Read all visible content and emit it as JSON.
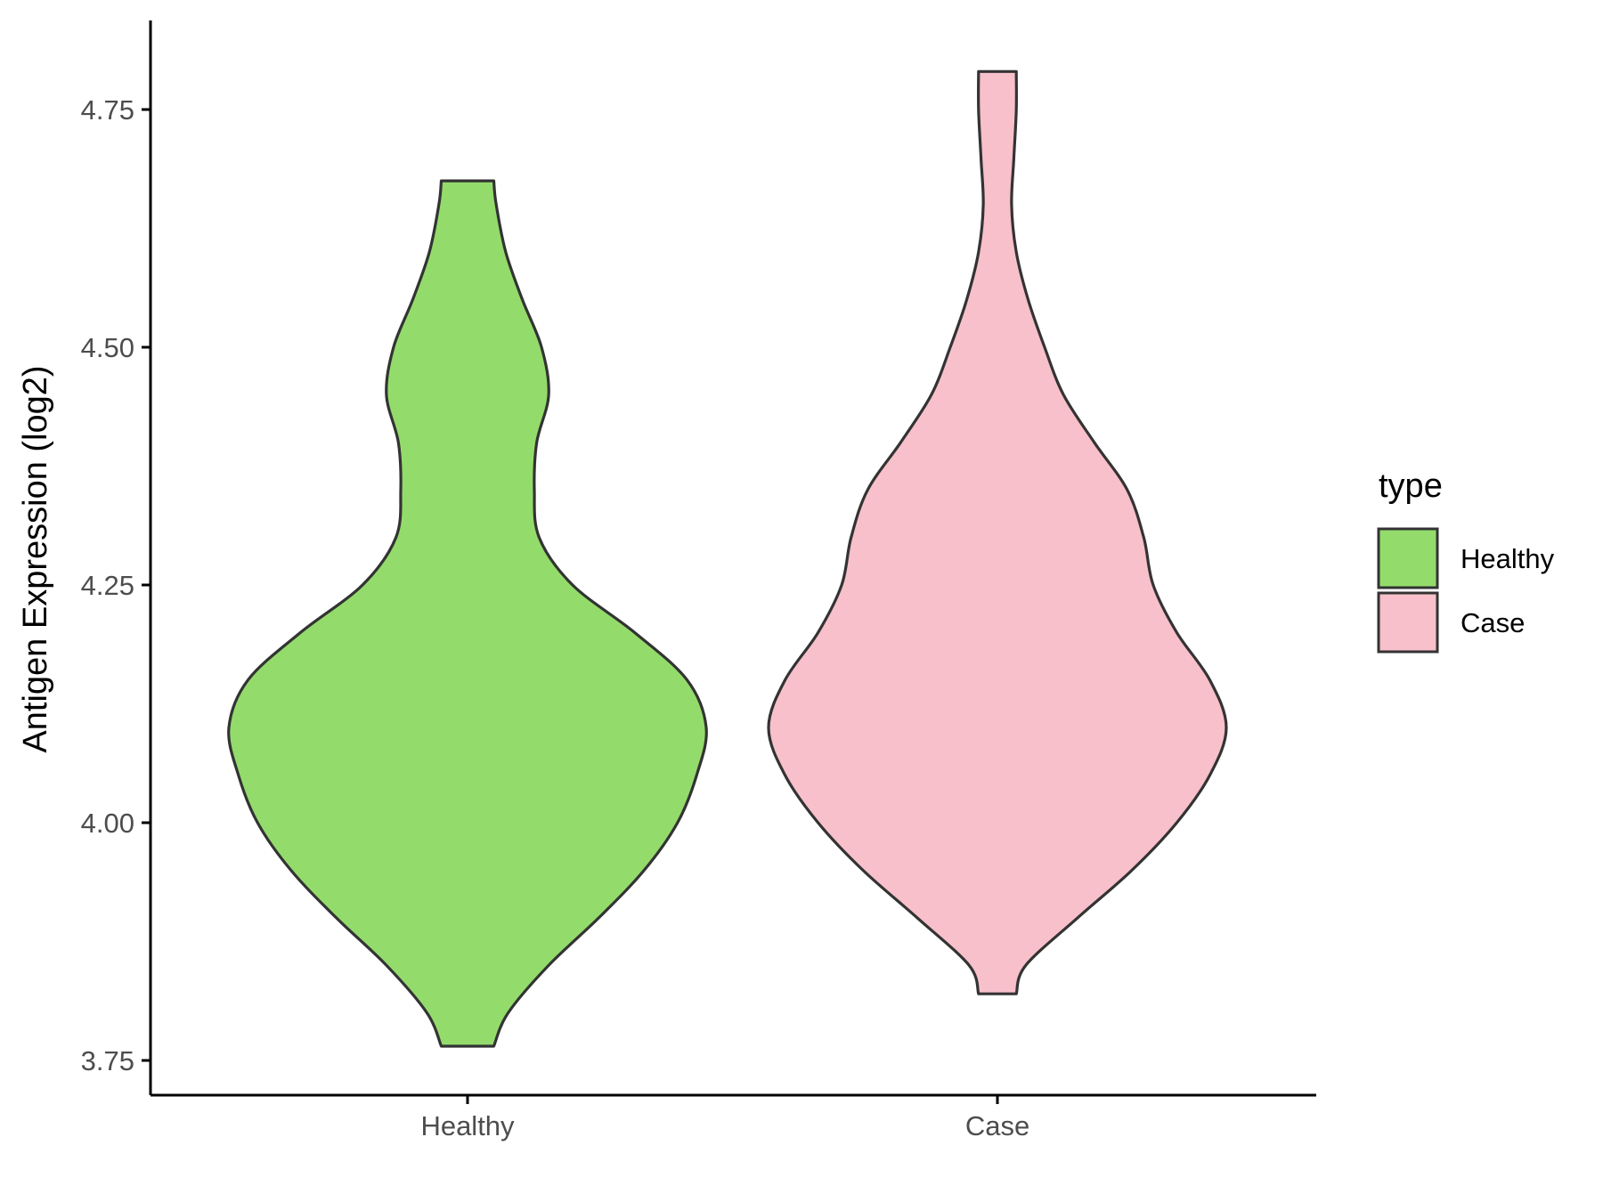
{
  "chart_data": {
    "type": "violin",
    "title": "",
    "xlabel": "",
    "ylabel": "Antigen Expression (log2)",
    "ylim": [
      3.72,
      4.84
    ],
    "yticks": [
      3.75,
      4.0,
      4.25,
      4.5,
      4.75
    ],
    "ytick_labels": [
      "3.75",
      "4.00",
      "4.25",
      "4.50",
      "4.75"
    ],
    "categories": [
      "Healthy",
      "Case"
    ],
    "legend": {
      "title": "type",
      "position": "right",
      "entries": [
        {
          "label": "Healthy",
          "color": "#93DC6B"
        },
        {
          "label": "Case",
          "color": "#F7C0CB"
        }
      ]
    },
    "series": [
      {
        "name": "Healthy",
        "color": "#93DC6B",
        "min": 3.765,
        "max": 4.675,
        "profile": [
          [
            3.765,
            0.11
          ],
          [
            3.8,
            0.17
          ],
          [
            3.85,
            0.34
          ],
          [
            3.9,
            0.55
          ],
          [
            3.95,
            0.74
          ],
          [
            4.0,
            0.88
          ],
          [
            4.05,
            0.96
          ],
          [
            4.1,
            1.0
          ],
          [
            4.15,
            0.92
          ],
          [
            4.2,
            0.7
          ],
          [
            4.25,
            0.44
          ],
          [
            4.3,
            0.3
          ],
          [
            4.35,
            0.28
          ],
          [
            4.4,
            0.29
          ],
          [
            4.45,
            0.34
          ],
          [
            4.5,
            0.31
          ],
          [
            4.55,
            0.23
          ],
          [
            4.6,
            0.16
          ],
          [
            4.65,
            0.12
          ],
          [
            4.675,
            0.11
          ]
        ]
      },
      {
        "name": "Case",
        "color": "#F7C0CB",
        "min": 3.82,
        "max": 4.79,
        "profile": [
          [
            3.82,
            0.08
          ],
          [
            3.85,
            0.12
          ],
          [
            3.9,
            0.34
          ],
          [
            3.95,
            0.57
          ],
          [
            4.0,
            0.76
          ],
          [
            4.05,
            0.9
          ],
          [
            4.1,
            0.97
          ],
          [
            4.15,
            0.9
          ],
          [
            4.2,
            0.76
          ],
          [
            4.25,
            0.66
          ],
          [
            4.3,
            0.62
          ],
          [
            4.35,
            0.55
          ],
          [
            4.4,
            0.41
          ],
          [
            4.45,
            0.28
          ],
          [
            4.5,
            0.2
          ],
          [
            4.55,
            0.13
          ],
          [
            4.6,
            0.08
          ],
          [
            4.65,
            0.06
          ],
          [
            4.7,
            0.07
          ],
          [
            4.75,
            0.08
          ],
          [
            4.79,
            0.08
          ]
        ]
      }
    ]
  }
}
